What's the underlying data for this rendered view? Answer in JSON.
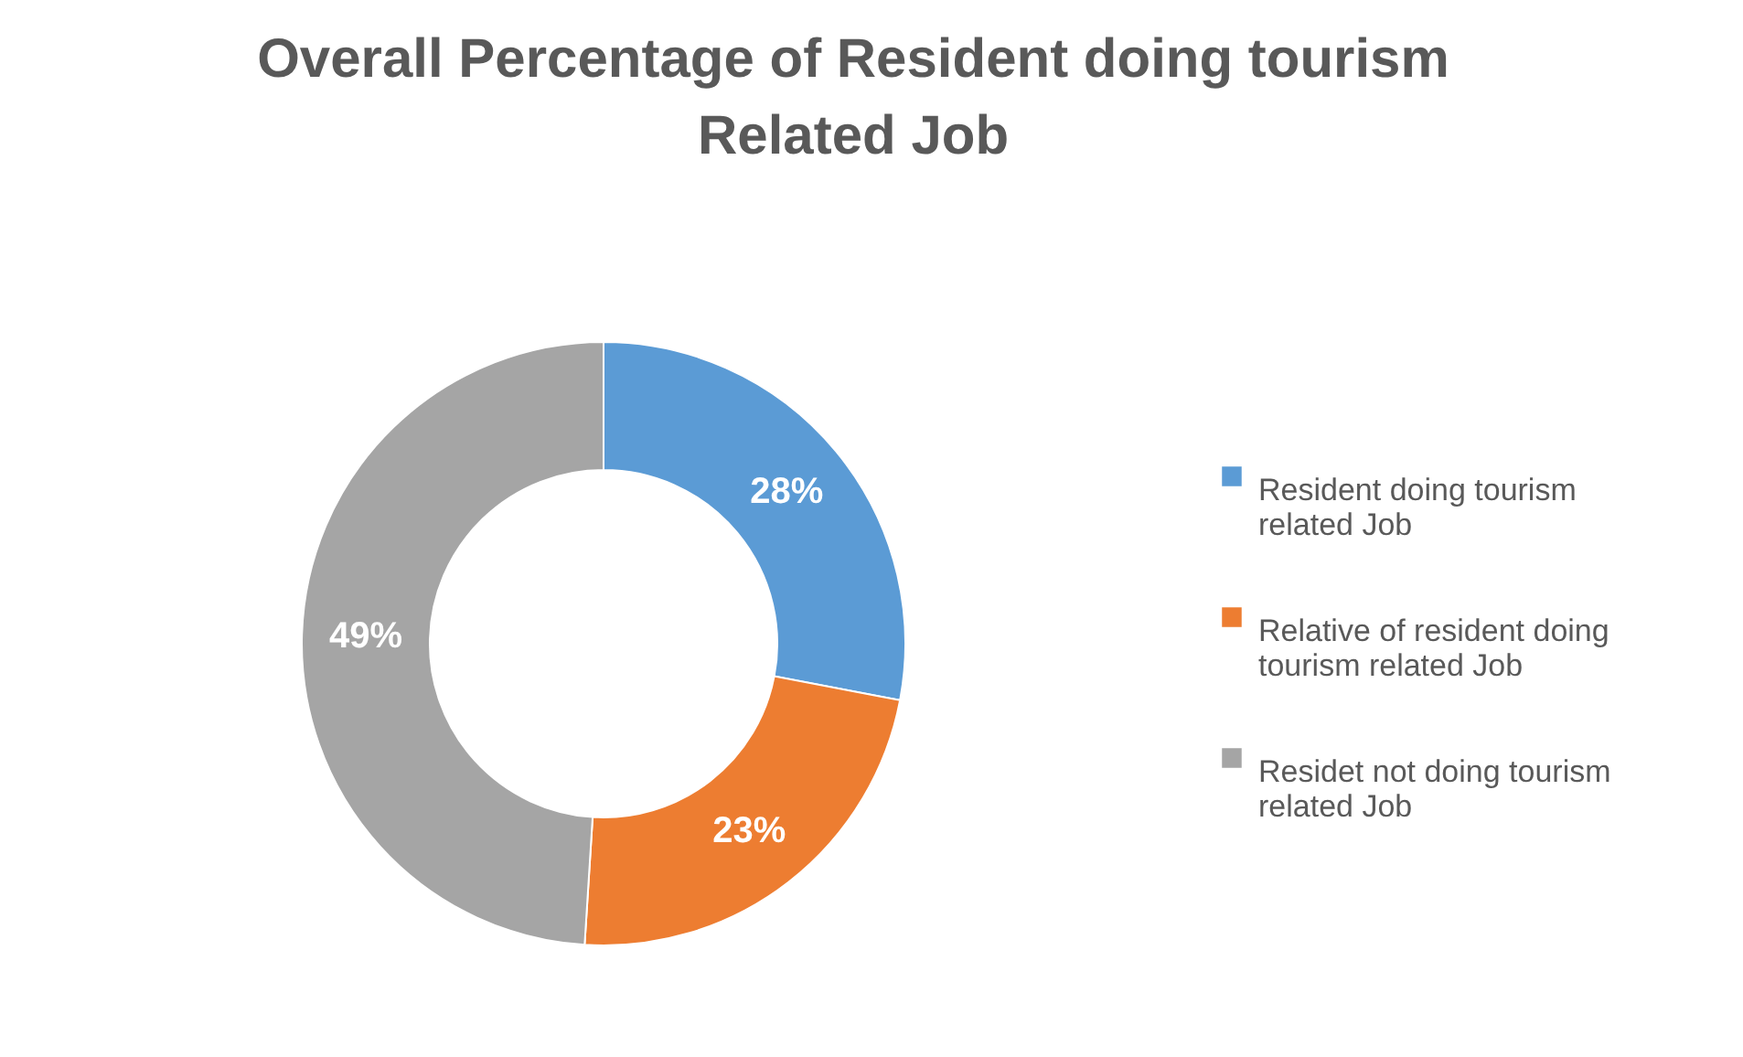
{
  "chart_data": {
    "type": "donut",
    "title": "Overall Percentage of Resident doing tourism Related Job",
    "categories": [
      "Resident doing tourism related Job",
      "Relative of resident doing tourism related Job",
      "Residet not doing tourism related Job"
    ],
    "values": [
      28,
      23,
      49
    ],
    "colors": [
      "#5b9bd5",
      "#ed7d31",
      "#a5a5a5"
    ],
    "value_labels": [
      "28%",
      "23%",
      "49%"
    ],
    "legend": "right"
  }
}
